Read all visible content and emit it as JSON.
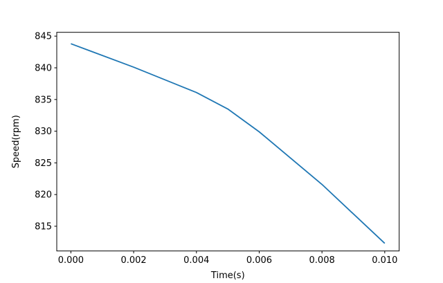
{
  "figure": {
    "background": "#ffffff"
  },
  "chart_data": {
    "type": "line",
    "title": "",
    "xlabel": "Time(s)",
    "ylabel": "Speed(rpm)",
    "x": [
      0.0,
      0.002,
      0.004,
      0.005,
      0.006,
      0.008,
      0.01
    ],
    "y": [
      843.8,
      840.1,
      836.1,
      833.5,
      829.9,
      821.6,
      812.3
    ],
    "series": [
      {
        "name": "speed",
        "color": "#1f77b4"
      }
    ],
    "xlim": [
      -0.00045,
      0.01046
    ],
    "ylim": [
      811.1,
      845.6
    ],
    "x_ticks": [
      0.0,
      0.002,
      0.004,
      0.006,
      0.008,
      0.01
    ],
    "x_tick_labels": [
      "0.000",
      "0.002",
      "0.004",
      "0.006",
      "0.008",
      "0.010"
    ],
    "y_ticks": [
      815,
      820,
      825,
      830,
      835,
      840,
      845
    ],
    "y_tick_labels": [
      "815",
      "820",
      "825",
      "830",
      "835",
      "840",
      "845"
    ],
    "grid": false,
    "legend_position": "none",
    "line_color": "#1f77b4",
    "axis_color": "#000000",
    "line_width": 1.8
  }
}
